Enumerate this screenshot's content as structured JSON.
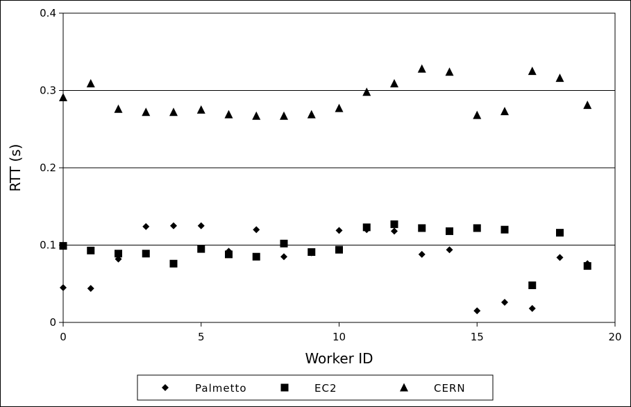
{
  "chart_data": {
    "type": "scatter",
    "xlabel": "Worker ID",
    "ylabel": "RTT (s)",
    "xlim": [
      0,
      20
    ],
    "ylim": [
      0,
      0.4
    ],
    "x_ticks": [
      0,
      5,
      10,
      15,
      20
    ],
    "y_ticks": [
      0,
      0.1,
      0.2,
      0.3,
      0.4
    ],
    "x_tick_labels": [
      "0",
      "5",
      "10",
      "15",
      "20"
    ],
    "y_tick_labels": [
      "0",
      "0.1",
      "0.2",
      "0.3",
      "0.4"
    ],
    "grid": "horizontal major",
    "legend_position": "bottom",
    "series": [
      {
        "name": "Palmetto",
        "marker": "diamond",
        "color": "#000000",
        "points": [
          [
            0,
            0.045
          ],
          [
            1,
            0.044
          ],
          [
            2,
            0.082
          ],
          [
            3,
            0.124
          ],
          [
            4,
            0.125
          ],
          [
            5,
            0.125
          ],
          [
            6,
            0.092
          ],
          [
            7,
            0.12
          ],
          [
            8,
            0.085
          ],
          [
            9,
            0.09
          ],
          [
            10,
            0.119
          ],
          [
            11,
            0.12
          ],
          [
            12,
            0.118
          ],
          [
            13,
            0.088
          ],
          [
            14,
            0.094
          ],
          [
            15,
            0.015
          ],
          [
            16,
            0.026
          ],
          [
            17,
            0.018
          ],
          [
            18,
            0.084
          ],
          [
            19,
            0.076
          ]
        ]
      },
      {
        "name": "EC2",
        "marker": "square",
        "color": "#000000",
        "points": [
          [
            0,
            0.099
          ],
          [
            1,
            0.093
          ],
          [
            2,
            0.089
          ],
          [
            3,
            0.089
          ],
          [
            4,
            0.076
          ],
          [
            5,
            0.095
          ],
          [
            6,
            0.088
          ],
          [
            7,
            0.085
          ],
          [
            8,
            0.102
          ],
          [
            9,
            0.091
          ],
          [
            10,
            0.094
          ],
          [
            11,
            0.123
          ],
          [
            12,
            0.127
          ],
          [
            13,
            0.122
          ],
          [
            14,
            0.118
          ],
          [
            15,
            0.122
          ],
          [
            16,
            0.12
          ],
          [
            17,
            0.048
          ],
          [
            18,
            0.116
          ],
          [
            19,
            0.073
          ]
        ]
      },
      {
        "name": "CERN",
        "marker": "triangle",
        "color": "#000000",
        "points": [
          [
            0,
            0.291
          ],
          [
            1,
            0.309
          ],
          [
            2,
            0.276
          ],
          [
            3,
            0.272
          ],
          [
            4,
            0.272
          ],
          [
            5,
            0.275
          ],
          [
            6,
            0.269
          ],
          [
            7,
            0.267
          ],
          [
            8,
            0.267
          ],
          [
            9,
            0.269
          ],
          [
            10,
            0.277
          ],
          [
            11,
            0.298
          ],
          [
            12,
            0.309
          ],
          [
            13,
            0.328
          ],
          [
            14,
            0.324
          ],
          [
            15,
            0.268
          ],
          [
            16,
            0.273
          ],
          [
            17,
            0.325
          ],
          [
            18,
            0.316
          ],
          [
            19,
            0.281
          ]
        ]
      }
    ]
  }
}
